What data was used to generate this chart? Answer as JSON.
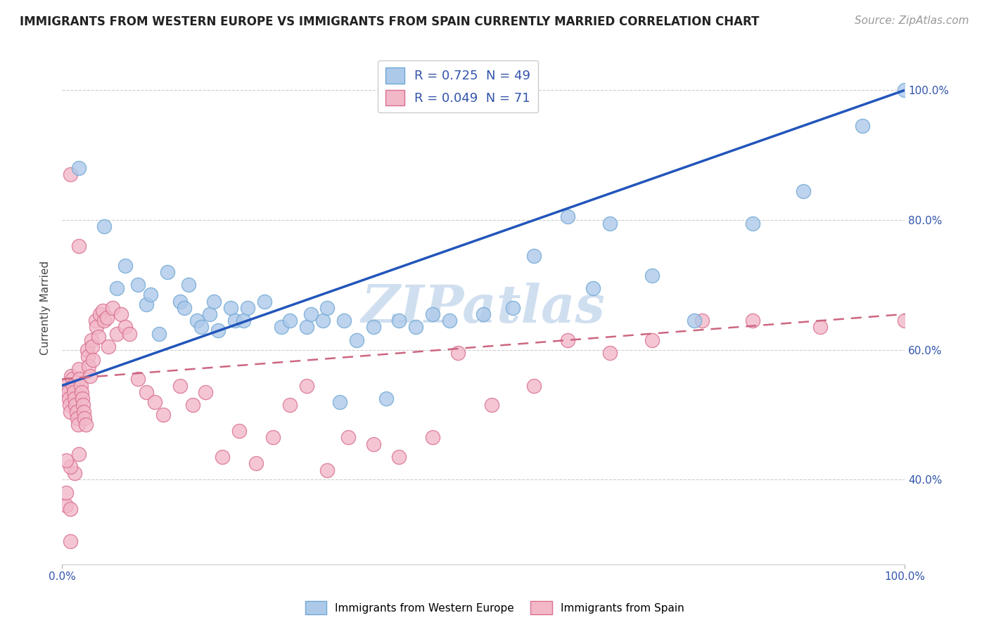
{
  "title": "IMMIGRANTS FROM WESTERN EUROPE VS IMMIGRANTS FROM SPAIN CURRENTLY MARRIED CORRELATION CHART",
  "source": "Source: ZipAtlas.com",
  "ylabel": "Currently Married",
  "xlim": [
    0.0,
    1.0
  ],
  "ylim": [
    0.27,
    1.06
  ],
  "series1_color": "#adc9ea",
  "series1_edge": "#6fa8d4",
  "series2_color": "#f2b8c8",
  "series2_edge": "#d97090",
  "line1_color": "#2255bb",
  "line2_color": "#cc6680",
  "background_color": "#ffffff",
  "watermark": "ZIPatlas",
  "watermark_color": "#d0dff0",
  "legend_label1": "R = 0.725  N = 49",
  "legend_label2": "R = 0.049  N = 71",
  "legend_color": "#3355aa",
  "bottom_label1": "Immigrants from Western Europe",
  "bottom_label2": "Immigrants from Spain",
  "title_fontsize": 12,
  "axis_label_fontsize": 11,
  "legend_fontsize": 13,
  "tick_fontsize": 11,
  "source_fontsize": 11,
  "blue_x": [
    0.02,
    0.05,
    0.065,
    0.075,
    0.09,
    0.1,
    0.105,
    0.115,
    0.125,
    0.14,
    0.145,
    0.15,
    0.16,
    0.165,
    0.175,
    0.18,
    0.185,
    0.2,
    0.205,
    0.215,
    0.22,
    0.24,
    0.26,
    0.27,
    0.29,
    0.295,
    0.31,
    0.315,
    0.33,
    0.335,
    0.35,
    0.37,
    0.385,
    0.4,
    0.42,
    0.44,
    0.46,
    0.5,
    0.535,
    0.56,
    0.6,
    0.63,
    0.65,
    0.7,
    0.75,
    0.82,
    0.88,
    0.95,
    1.0
  ],
  "blue_y": [
    0.88,
    0.79,
    0.695,
    0.73,
    0.7,
    0.67,
    0.685,
    0.625,
    0.72,
    0.675,
    0.665,
    0.7,
    0.645,
    0.635,
    0.655,
    0.675,
    0.63,
    0.665,
    0.645,
    0.645,
    0.665,
    0.675,
    0.635,
    0.645,
    0.635,
    0.655,
    0.645,
    0.665,
    0.52,
    0.645,
    0.615,
    0.635,
    0.525,
    0.645,
    0.635,
    0.655,
    0.645,
    0.655,
    0.665,
    0.745,
    0.805,
    0.695,
    0.795,
    0.715,
    0.645,
    0.795,
    0.845,
    0.945,
    1.0
  ],
  "pink_x": [
    0.005,
    0.007,
    0.008,
    0.009,
    0.01,
    0.011,
    0.012,
    0.013,
    0.014,
    0.015,
    0.016,
    0.017,
    0.018,
    0.019,
    0.02,
    0.021,
    0.022,
    0.023,
    0.024,
    0.025,
    0.026,
    0.027,
    0.028,
    0.03,
    0.031,
    0.032,
    0.033,
    0.035,
    0.036,
    0.037,
    0.04,
    0.041,
    0.043,
    0.045,
    0.048,
    0.05,
    0.053,
    0.055,
    0.06,
    0.065,
    0.07,
    0.075,
    0.08,
    0.09,
    0.1,
    0.11,
    0.12,
    0.14,
    0.155,
    0.17,
    0.19,
    0.21,
    0.23,
    0.25,
    0.27,
    0.29,
    0.315,
    0.34,
    0.37,
    0.4,
    0.44,
    0.47,
    0.51,
    0.56,
    0.6,
    0.65,
    0.7,
    0.76,
    0.82,
    0.9,
    1.0
  ],
  "pink_y": [
    0.545,
    0.535,
    0.525,
    0.515,
    0.505,
    0.56,
    0.555,
    0.545,
    0.535,
    0.525,
    0.515,
    0.505,
    0.495,
    0.485,
    0.57,
    0.555,
    0.545,
    0.535,
    0.525,
    0.515,
    0.505,
    0.495,
    0.485,
    0.6,
    0.59,
    0.575,
    0.56,
    0.615,
    0.605,
    0.585,
    0.645,
    0.635,
    0.62,
    0.655,
    0.66,
    0.645,
    0.65,
    0.605,
    0.665,
    0.625,
    0.655,
    0.635,
    0.625,
    0.555,
    0.535,
    0.52,
    0.5,
    0.545,
    0.515,
    0.535,
    0.435,
    0.475,
    0.425,
    0.465,
    0.515,
    0.545,
    0.415,
    0.465,
    0.455,
    0.435,
    0.465,
    0.595,
    0.515,
    0.545,
    0.615,
    0.595,
    0.615,
    0.645,
    0.645,
    0.635,
    0.645
  ],
  "pink_outlier_x": [
    0.01,
    0.02,
    0.01,
    0.005,
    0.015,
    0.01,
    0.005,
    0.02,
    0.005,
    0.01
  ],
  "pink_outlier_y": [
    0.87,
    0.76,
    0.305,
    0.36,
    0.41,
    0.42,
    0.43,
    0.44,
    0.38,
    0.355
  ],
  "blue_line_x0": 0.0,
  "blue_line_y0": 0.545,
  "blue_line_x1": 1.0,
  "blue_line_y1": 1.0,
  "pink_line_x0": 0.0,
  "pink_line_y0": 0.555,
  "pink_line_x1": 1.0,
  "pink_line_y1": 0.655
}
